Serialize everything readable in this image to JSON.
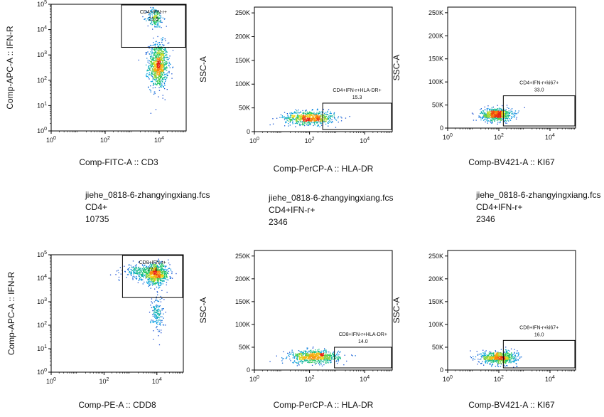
{
  "panels_text": [
    {
      "file": "jiehe_0818-6-zhangyingxiang.fcs",
      "population": "CD4+",
      "count": "10735"
    },
    {
      "file": "jiehe_0818-6-zhangyingxiang.fcs",
      "population": "CD4+IFN-r+",
      "count": "2346"
    },
    {
      "file": "jiehe_0818-6-zhangyingxiang.fcs",
      "population": "CD4+IFN-r+",
      "count": "2346"
    }
  ],
  "chart_data": [
    {
      "type": "scatter",
      "xlabel": "Comp-FITC-A :: CD3",
      "ylabel": "Comp-APC-A :: IFN-R",
      "xscale": "log",
      "yscale": "log",
      "xticks": [
        "10^0",
        "10^2",
        "10^4"
      ],
      "yticks": [
        "10^0",
        "10^1",
        "10^2",
        "10^3",
        "10^4",
        "10^5"
      ],
      "xlim": [
        1,
        100000
      ],
      "ylim": [
        1,
        100000
      ],
      "gate": {
        "label": "CD4+IFN-r+",
        "value": "21.9",
        "x_range": [
          400,
          100000
        ],
        "y_range": [
          2000,
          100000
        ]
      },
      "clusters": [
        {
          "center": [
            9000,
            400
          ],
          "spread": [
            0.18,
            0.45
          ],
          "n": 900
        },
        {
          "center": [
            7000,
            30000
          ],
          "spread": [
            0.15,
            0.2
          ],
          "n": 180
        }
      ]
    },
    {
      "type": "scatter",
      "xlabel": "Comp-PerCP-A :: HLA-DR",
      "ylabel": "SSC-A",
      "xscale": "log",
      "yscale": "linear",
      "xticks": [
        "10^0",
        "10^2",
        "10^4"
      ],
      "yticks": [
        "0",
        "50K",
        "100K",
        "150K",
        "200K",
        "250K"
      ],
      "xlim": [
        1,
        100000
      ],
      "ylim": [
        0,
        262144
      ],
      "gate": {
        "label": "CD4+IFN-r+HLA-DR+",
        "value": "15.3",
        "x_range": [
          300,
          100000
        ],
        "y_range": [
          0,
          60000
        ]
      },
      "clusters": [
        {
          "center": [
            100,
            30000
          ],
          "spread": [
            0.45,
            7000
          ],
          "n": 700
        }
      ]
    },
    {
      "type": "scatter",
      "xlabel": "Comp-BV421-A :: KI67",
      "ylabel": "SSC-A",
      "xscale": "log",
      "yscale": "linear",
      "xticks": [
        "10^0",
        "10^2",
        "10^4"
      ],
      "yticks": [
        "0",
        "50K",
        "100K",
        "150K",
        "200K",
        "250K"
      ],
      "xlim": [
        1,
        100000
      ],
      "ylim": [
        0,
        262144
      ],
      "gate": {
        "label": "CD4+IFN-r+ki67+",
        "value": "33.0",
        "x_range": [
          150,
          100000
        ],
        "y_range": [
          0,
          70000
        ]
      },
      "clusters": [
        {
          "center": [
            80,
            30000
          ],
          "spread": [
            0.3,
            7000
          ],
          "n": 700
        }
      ]
    },
    {
      "type": "scatter",
      "xlabel": "Comp-PE-A :: CDD8",
      "ylabel": "Comp-APC-A :: IFN-R",
      "xscale": "log",
      "yscale": "log",
      "xticks": [
        "10^0",
        "10^2",
        "10^4"
      ],
      "yticks": [
        "10^0",
        "10^1",
        "10^2",
        "10^3",
        "10^4",
        "10^5"
      ],
      "xlim": [
        1,
        100000
      ],
      "ylim": [
        1,
        100000
      ],
      "gate": {
        "label": "CD8+IFN-r+",
        "value": "77.4",
        "x_range": [
          500,
          100000
        ],
        "y_range": [
          1500,
          100000
        ]
      },
      "clusters": [
        {
          "center": [
            9000,
            15000
          ],
          "spread": [
            0.25,
            0.22
          ],
          "n": 700
        },
        {
          "center": [
            2500,
            20000
          ],
          "spread": [
            0.35,
            0.15
          ],
          "n": 250
        },
        {
          "center": [
            10000,
            300
          ],
          "spread": [
            0.12,
            0.4
          ],
          "n": 160
        }
      ]
    },
    {
      "type": "scatter",
      "xlabel": "Comp-PerCP-A :: HLA-DR",
      "ylabel": "SSC-A",
      "xscale": "log",
      "yscale": "linear",
      "xticks": [
        "10^0",
        "10^2",
        "10^4"
      ],
      "yticks": [
        "0",
        "50K",
        "100K",
        "150K",
        "200K",
        "250K"
      ],
      "xlim": [
        1,
        100000
      ],
      "ylim": [
        0,
        262144
      ],
      "gate": {
        "label": "CD8+IFN-r+HLA-DR+",
        "value": "14.0",
        "x_range": [
          800,
          100000
        ],
        "y_range": [
          0,
          50000
        ]
      },
      "clusters": [
        {
          "center": [
            150,
            30000
          ],
          "spread": [
            0.45,
            7000
          ],
          "n": 700
        }
      ]
    },
    {
      "type": "scatter",
      "xlabel": "Comp-BV421-A :: KI67",
      "ylabel": "SSC-A",
      "xscale": "log",
      "yscale": "linear",
      "xticks": [
        "10^0",
        "10^2",
        "10^4"
      ],
      "yticks": [
        "0",
        "50K",
        "100K",
        "150K",
        "200K",
        "250K"
      ],
      "xlim": [
        1,
        100000
      ],
      "ylim": [
        0,
        262144
      ],
      "gate": {
        "label": "CD8+IFN-r+ki67+",
        "value": "16.0",
        "x_range": [
          150,
          100000
        ],
        "y_range": [
          0,
          65000
        ]
      },
      "clusters": [
        {
          "center": [
            100,
            28000
          ],
          "spread": [
            0.35,
            7000
          ],
          "n": 700
        }
      ]
    }
  ]
}
